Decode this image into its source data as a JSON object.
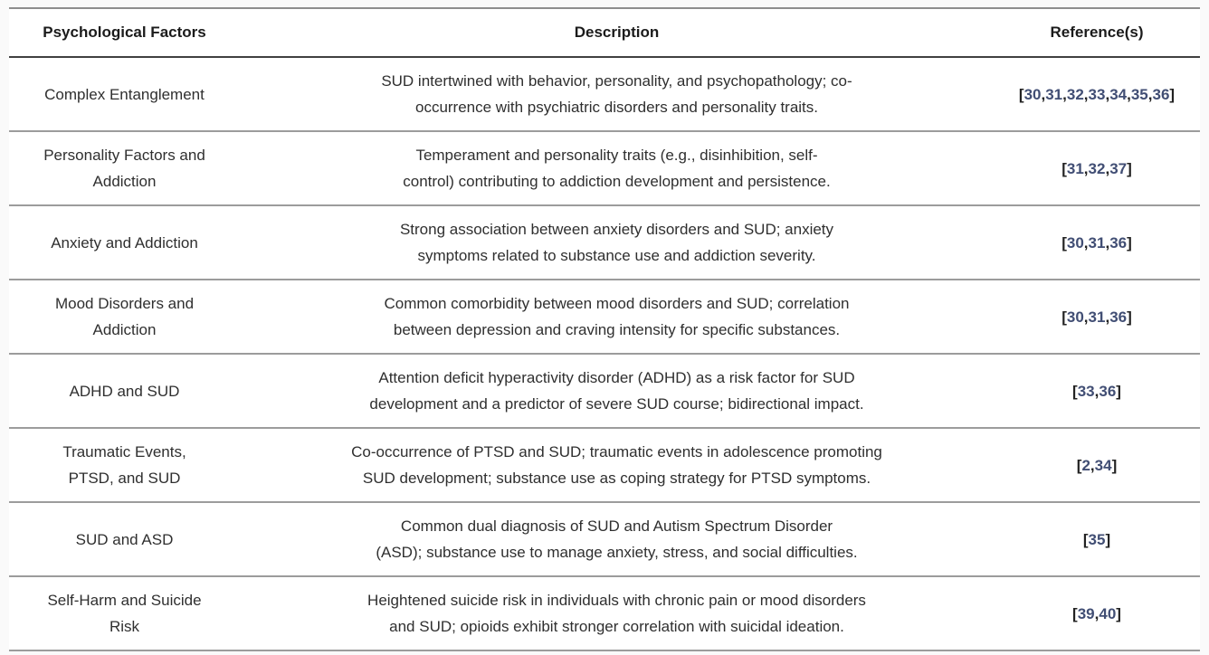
{
  "table": {
    "columns": [
      "Psychological Factors",
      "Description",
      "Reference(s)"
    ],
    "rows": [
      {
        "factor": "Complex Entanglement",
        "description": "SUD intertwined with behavior, personality, and psychopathology; co-occurrence with psychiatric disorders and personality traits.",
        "refs": [
          30,
          31,
          32,
          33,
          34,
          35,
          36
        ]
      },
      {
        "factor": "Personality Factors and Addiction",
        "description": "Temperament and personality traits (e.g., disinhibition, self-control) contributing to addiction development and persistence.",
        "refs": [
          31,
          32,
          37
        ]
      },
      {
        "factor": "Anxiety and Addiction",
        "description": "Strong association between anxiety disorders and SUD; anxiety symptoms related to substance use and addiction severity.",
        "refs": [
          30,
          31,
          36
        ]
      },
      {
        "factor": "Mood Disorders and Addiction",
        "description": "Common comorbidity between mood disorders and SUD; correlation between depression and craving intensity for specific substances.",
        "refs": [
          30,
          31,
          36
        ]
      },
      {
        "factor": "ADHD and SUD",
        "description": "Attention deficit hyperactivity disorder (ADHD) as a risk factor for SUD development and a predictor of severe SUD course; bidirectional impact.",
        "refs": [
          33,
          36
        ]
      },
      {
        "factor": "Traumatic Events, PTSD, and SUD",
        "description": "Co-occurrence of PTSD and SUD; traumatic events in adolescence promoting SUD development; substance use as coping strategy for PTSD symptoms.",
        "refs": [
          2,
          34
        ]
      },
      {
        "factor": "SUD and ASD",
        "description": "Common dual diagnosis of SUD and Autism Spectrum Disorder (ASD); substance use to manage anxiety, stress, and social difficulties.",
        "refs": [
          35
        ]
      },
      {
        "factor": "Self-Harm and Suicide Risk",
        "description": "Heightened suicide risk in individuals with chronic pain or mood disorders and SUD; opioids exhibit stronger correlation with suicidal ideation.",
        "refs": [
          39,
          40
        ]
      }
    ]
  },
  "reference_brackets": {
    "open": "[",
    "close": "]",
    "separator": ","
  },
  "colors": {
    "page_background": "#fafafa",
    "table_background": "#ffffff",
    "top_border": "#8e8e8e",
    "header_border": "#404040",
    "row_border": "#9c9c9c",
    "header_text": "#1b1b1b",
    "body_text": "#2f2f2f",
    "reference_text": "#222222",
    "reference_link": "#414e74"
  }
}
